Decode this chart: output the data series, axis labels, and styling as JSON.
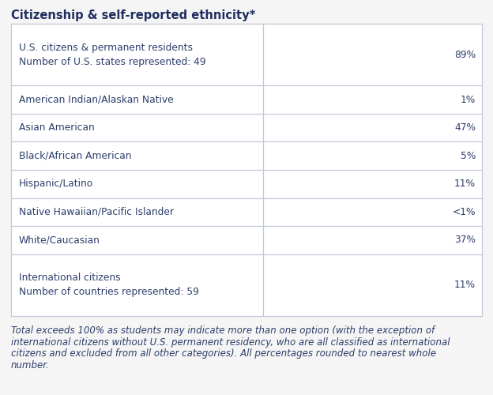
{
  "title": "Citizenship & self-reported ethnicity*",
  "title_color": "#1e2d5e",
  "background_color": "#f5f5f5",
  "table_bg_color": "#ffffff",
  "table_border_color": "#c0c8d8",
  "text_color": "#2c3e6b",
  "footnote_color": "#2c3e6b",
  "rows": [
    {
      "label": "U.S. citizens & permanent residents\nNumber of U.S. states represented: 49",
      "value": "89%",
      "tall": true
    },
    {
      "label": "American Indian/Alaskan Native",
      "value": "1%",
      "tall": false
    },
    {
      "label": "Asian American",
      "value": "47%",
      "tall": false
    },
    {
      "label": "Black/African American",
      "value": "5%",
      "tall": false
    },
    {
      "label": "Hispanic/Latino",
      "value": "11%",
      "tall": false
    },
    {
      "label": "Native Hawaiian/Pacific Islander",
      "value": "<1%",
      "tall": false
    },
    {
      "label": "White/Caucasian",
      "value": "37%",
      "tall": false
    },
    {
      "label": "International citizens\nNumber of countries represented: 59",
      "value": "11%",
      "tall": true
    }
  ],
  "footnote_lines": [
    "Total exceeds 100% as students may indicate more than one option (with the exception of",
    "international citizens without U.S. permanent residency, who are all classified as international",
    "citizens and excluded from all other categories). All percentages rounded to nearest whole",
    "number."
  ],
  "col_split": 0.535,
  "font_size_title": 10.5,
  "font_size_body": 8.8,
  "font_size_footnote": 8.5
}
